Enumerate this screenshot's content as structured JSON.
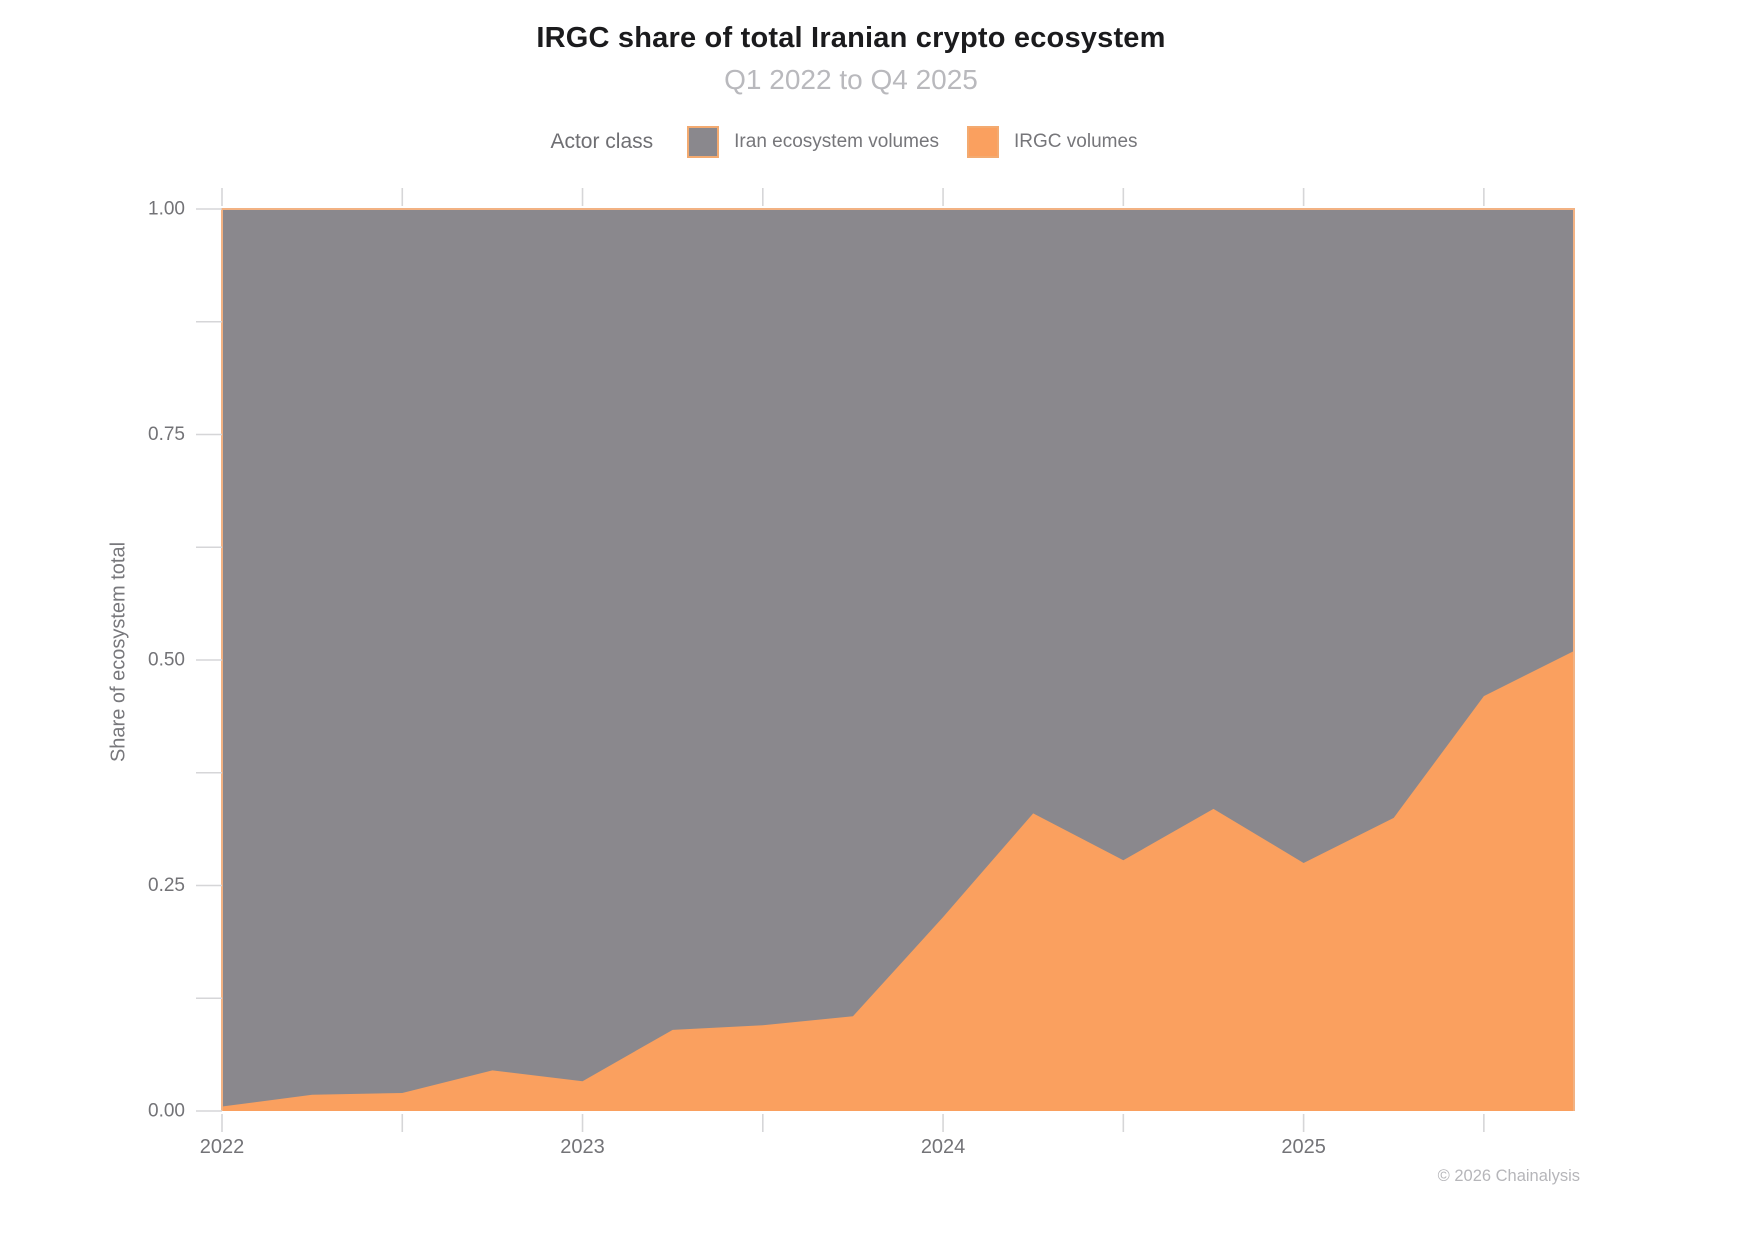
{
  "header": {
    "title": "IRGC share of total Iranian crypto ecosystem",
    "subtitle": "Q1 2022 to Q4 2025"
  },
  "legend": {
    "title": "Actor class",
    "items": [
      {
        "label": "Iran ecosystem volumes",
        "color": "#8A888D"
      },
      {
        "label": "IRGC volumes",
        "color": "#FAA05F"
      }
    ]
  },
  "axes": {
    "y": {
      "title": "Share of ecosystem total",
      "tick_labels": [
        "1.00",
        "0.75",
        "0.50",
        "0.25",
        "0.00"
      ]
    },
    "x": {
      "tick_labels": [
        "2022",
        "2023",
        "2024",
        "2025"
      ]
    }
  },
  "footer": {
    "copyright": "© 2026 Chainalysis"
  },
  "style": {
    "irgc_color": "#FAA05F",
    "iran_color": "#8A888D",
    "panel_border_color": "#F2B283",
    "tick_color": "#D6D6D8",
    "tick_label_color": "#737377"
  },
  "chart_data": {
    "type": "area",
    "stacked": true,
    "title": "IRGC share of total Iranian crypto ecosystem",
    "subtitle": "Q1 2022 to Q4 2025",
    "xlabel": "",
    "ylabel": "Share of ecosystem total",
    "ylim": [
      0,
      1
    ],
    "legend_position": "top",
    "x": [
      "Q1 2022",
      "Q2 2022",
      "Q3 2022",
      "Q4 2022",
      "Q1 2023",
      "Q2 2023",
      "Q3 2023",
      "Q4 2023",
      "Q1 2024",
      "Q2 2024",
      "Q3 2024",
      "Q4 2024",
      "Q1 2025",
      "Q2 2025",
      "Q3 2025",
      "Q4 2025"
    ],
    "series": [
      {
        "name": "IRGC volumes",
        "color": "#FAA05F",
        "values": [
          0.005,
          0.018,
          0.02,
          0.045,
          0.033,
          0.09,
          0.095,
          0.105,
          0.215,
          0.33,
          0.278,
          0.335,
          0.275,
          0.325,
          0.46,
          0.51
        ]
      },
      {
        "name": "Iran ecosystem volumes",
        "color": "#8A888D",
        "values": [
          0.995,
          0.982,
          0.98,
          0.955,
          0.967,
          0.91,
          0.905,
          0.895,
          0.785,
          0.67,
          0.722,
          0.665,
          0.725,
          0.675,
          0.54,
          0.49
        ]
      }
    ],
    "x_major_tick_years": [
      "2022",
      "2023",
      "2024",
      "2025"
    ],
    "y_major_ticks": [
      0,
      0.25,
      0.5,
      0.75,
      1.0
    ],
    "minor_ticks": "half-year on x, 0.125 steps on y"
  }
}
